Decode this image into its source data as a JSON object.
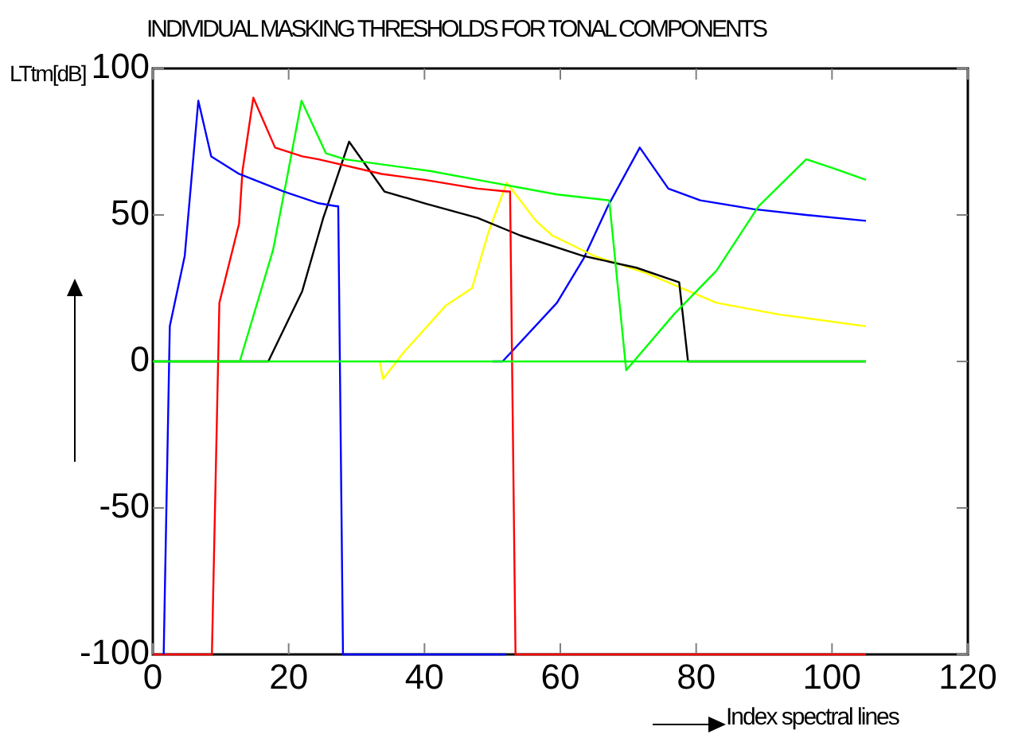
{
  "chart_data": {
    "type": "line",
    "title": "INDIVIDUAL MASKING THRESHOLDS FOR TONAL COMPONENTS",
    "xlabel": "Index spectral lines",
    "ylabel": "LTtm[dB]",
    "xlim": [
      0,
      120
    ],
    "xticks": [
      0,
      20,
      40,
      60,
      80,
      100,
      120
    ],
    "ylim": [
      -100,
      100
    ],
    "yticks": [
      -100,
      -50,
      0,
      50,
      100
    ],
    "legend": false,
    "series": [
      {
        "color": "#00ff00",
        "x": [
          0,
          105
        ],
        "values": [
          0,
          0
        ]
      },
      {
        "color": "#0000ff",
        "x": [
          1.6,
          2.5,
          4.7,
          6.7,
          8.6,
          12.7,
          19.3,
          24.4,
          27,
          27.3,
          28,
          52
        ],
        "values": [
          -100,
          12,
          36,
          89,
          70,
          64,
          58,
          54,
          53,
          53,
          -100,
          -100
        ]
      },
      {
        "color": "#ff0000",
        "x": [
          0,
          8.7,
          9.8,
          12.7,
          13.2,
          14.8,
          18,
          22,
          24.4,
          33.7,
          40,
          47.8,
          52.1,
          52.6,
          53.4,
          105
        ],
        "values": [
          -100,
          -100,
          20,
          47,
          65,
          90,
          73,
          70,
          69,
          64,
          62,
          59,
          58,
          58,
          -100,
          -100
        ]
      },
      {
        "color": "#00ff00",
        "x": [
          0,
          12.8,
          17.7,
          19.7,
          21.9,
          25.5,
          28.3,
          40.8,
          47.8,
          59.5,
          67.2,
          69.7,
          76.7,
          83,
          89.2,
          96.2,
          100.1,
          105
        ],
        "values": [
          0,
          0,
          38,
          62,
          89,
          71,
          69,
          65,
          62,
          57,
          55,
          -3,
          16,
          31,
          53,
          69,
          66,
          62
        ]
      },
      {
        "color": "#000000",
        "x": [
          0,
          17,
          22,
          25.1,
          28.9,
          34.1,
          40,
          47.8,
          54.1,
          63.4,
          71.2,
          77.5,
          78.8,
          105
        ],
        "values": [
          0,
          0,
          24,
          49,
          75,
          58,
          54,
          49,
          43,
          36,
          32,
          27,
          0,
          0
        ]
      },
      {
        "color": "#ffff00",
        "x": [
          33.4,
          33.9,
          36.9,
          43.1,
          47,
          49.4,
          52.1,
          56.4,
          58.8,
          65,
          72.8,
          83,
          92.3,
          105
        ],
        "values": [
          0,
          -6,
          3,
          19,
          25,
          44,
          61,
          48,
          43,
          36,
          30,
          20,
          16,
          12
        ]
      },
      {
        "color": "#0000ff",
        "x": [
          50,
          51.5,
          59.5,
          63.4,
          67,
          71.7,
          75.9,
          80.6,
          88.4,
          96.2,
          105
        ],
        "values": [
          0,
          0,
          20,
          35,
          53,
          73,
          59,
          55,
          52,
          50,
          48
        ]
      }
    ]
  }
}
